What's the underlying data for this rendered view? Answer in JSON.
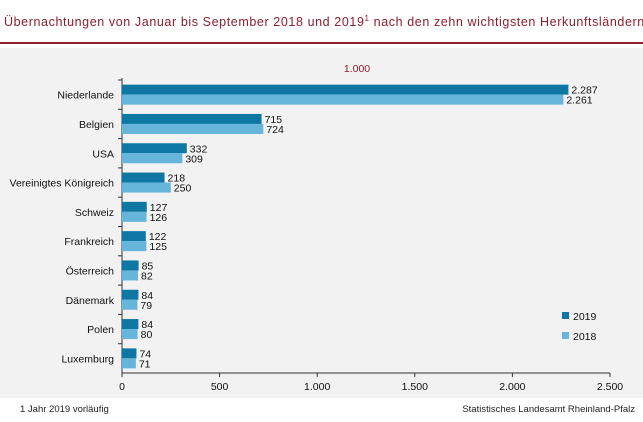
{
  "title": {
    "main": "Übernachtungen von Januar bis September 2018 und 2019",
    "superscript": "1",
    "rest": " nach den zehn wichtigsten Herkunftsländern"
  },
  "footer": {
    "note": "1 Jahr 2019 vorläufig",
    "source": "Statistisches Landesamt Rheinland-Pfalz"
  },
  "colors": {
    "brand": "#8c1e2e",
    "series_2019": "#0e77a3",
    "series_2018": "#66b6db",
    "panel_bg": "#f2f2f2"
  },
  "chart_data": {
    "type": "bar",
    "orientation": "horizontal",
    "unit_label": "1.000",
    "categories": [
      "Niederlande",
      "Belgien",
      "USA",
      "Vereinigtes Königreich",
      "Schweiz",
      "Frankreich",
      "Österreich",
      "Dänemark",
      "Polen",
      "Luxemburg"
    ],
    "series": [
      {
        "name": "2019",
        "color": "#0e77a3",
        "values": [
          2287,
          715,
          332,
          218,
          127,
          122,
          85,
          84,
          84,
          74
        ],
        "labels": [
          "2.287",
          "715",
          "332",
          "218",
          "127",
          "122",
          "85",
          "84",
          "84",
          "74"
        ]
      },
      {
        "name": "2018",
        "color": "#66b6db",
        "values": [
          2261,
          724,
          309,
          250,
          126,
          125,
          82,
          79,
          80,
          71
        ],
        "labels": [
          "2.261",
          "724",
          "309",
          "250",
          "126",
          "125",
          "82",
          "79",
          "80",
          "71"
        ]
      }
    ],
    "xlim": [
      0,
      2500
    ],
    "xticks": [
      0,
      500,
      1000,
      1500,
      2000,
      2500
    ],
    "xtick_labels": [
      "0",
      "500",
      "1.000",
      "1.500",
      "2.000",
      "2.500"
    ],
    "legend_position": "bottom-right",
    "grid": false
  }
}
